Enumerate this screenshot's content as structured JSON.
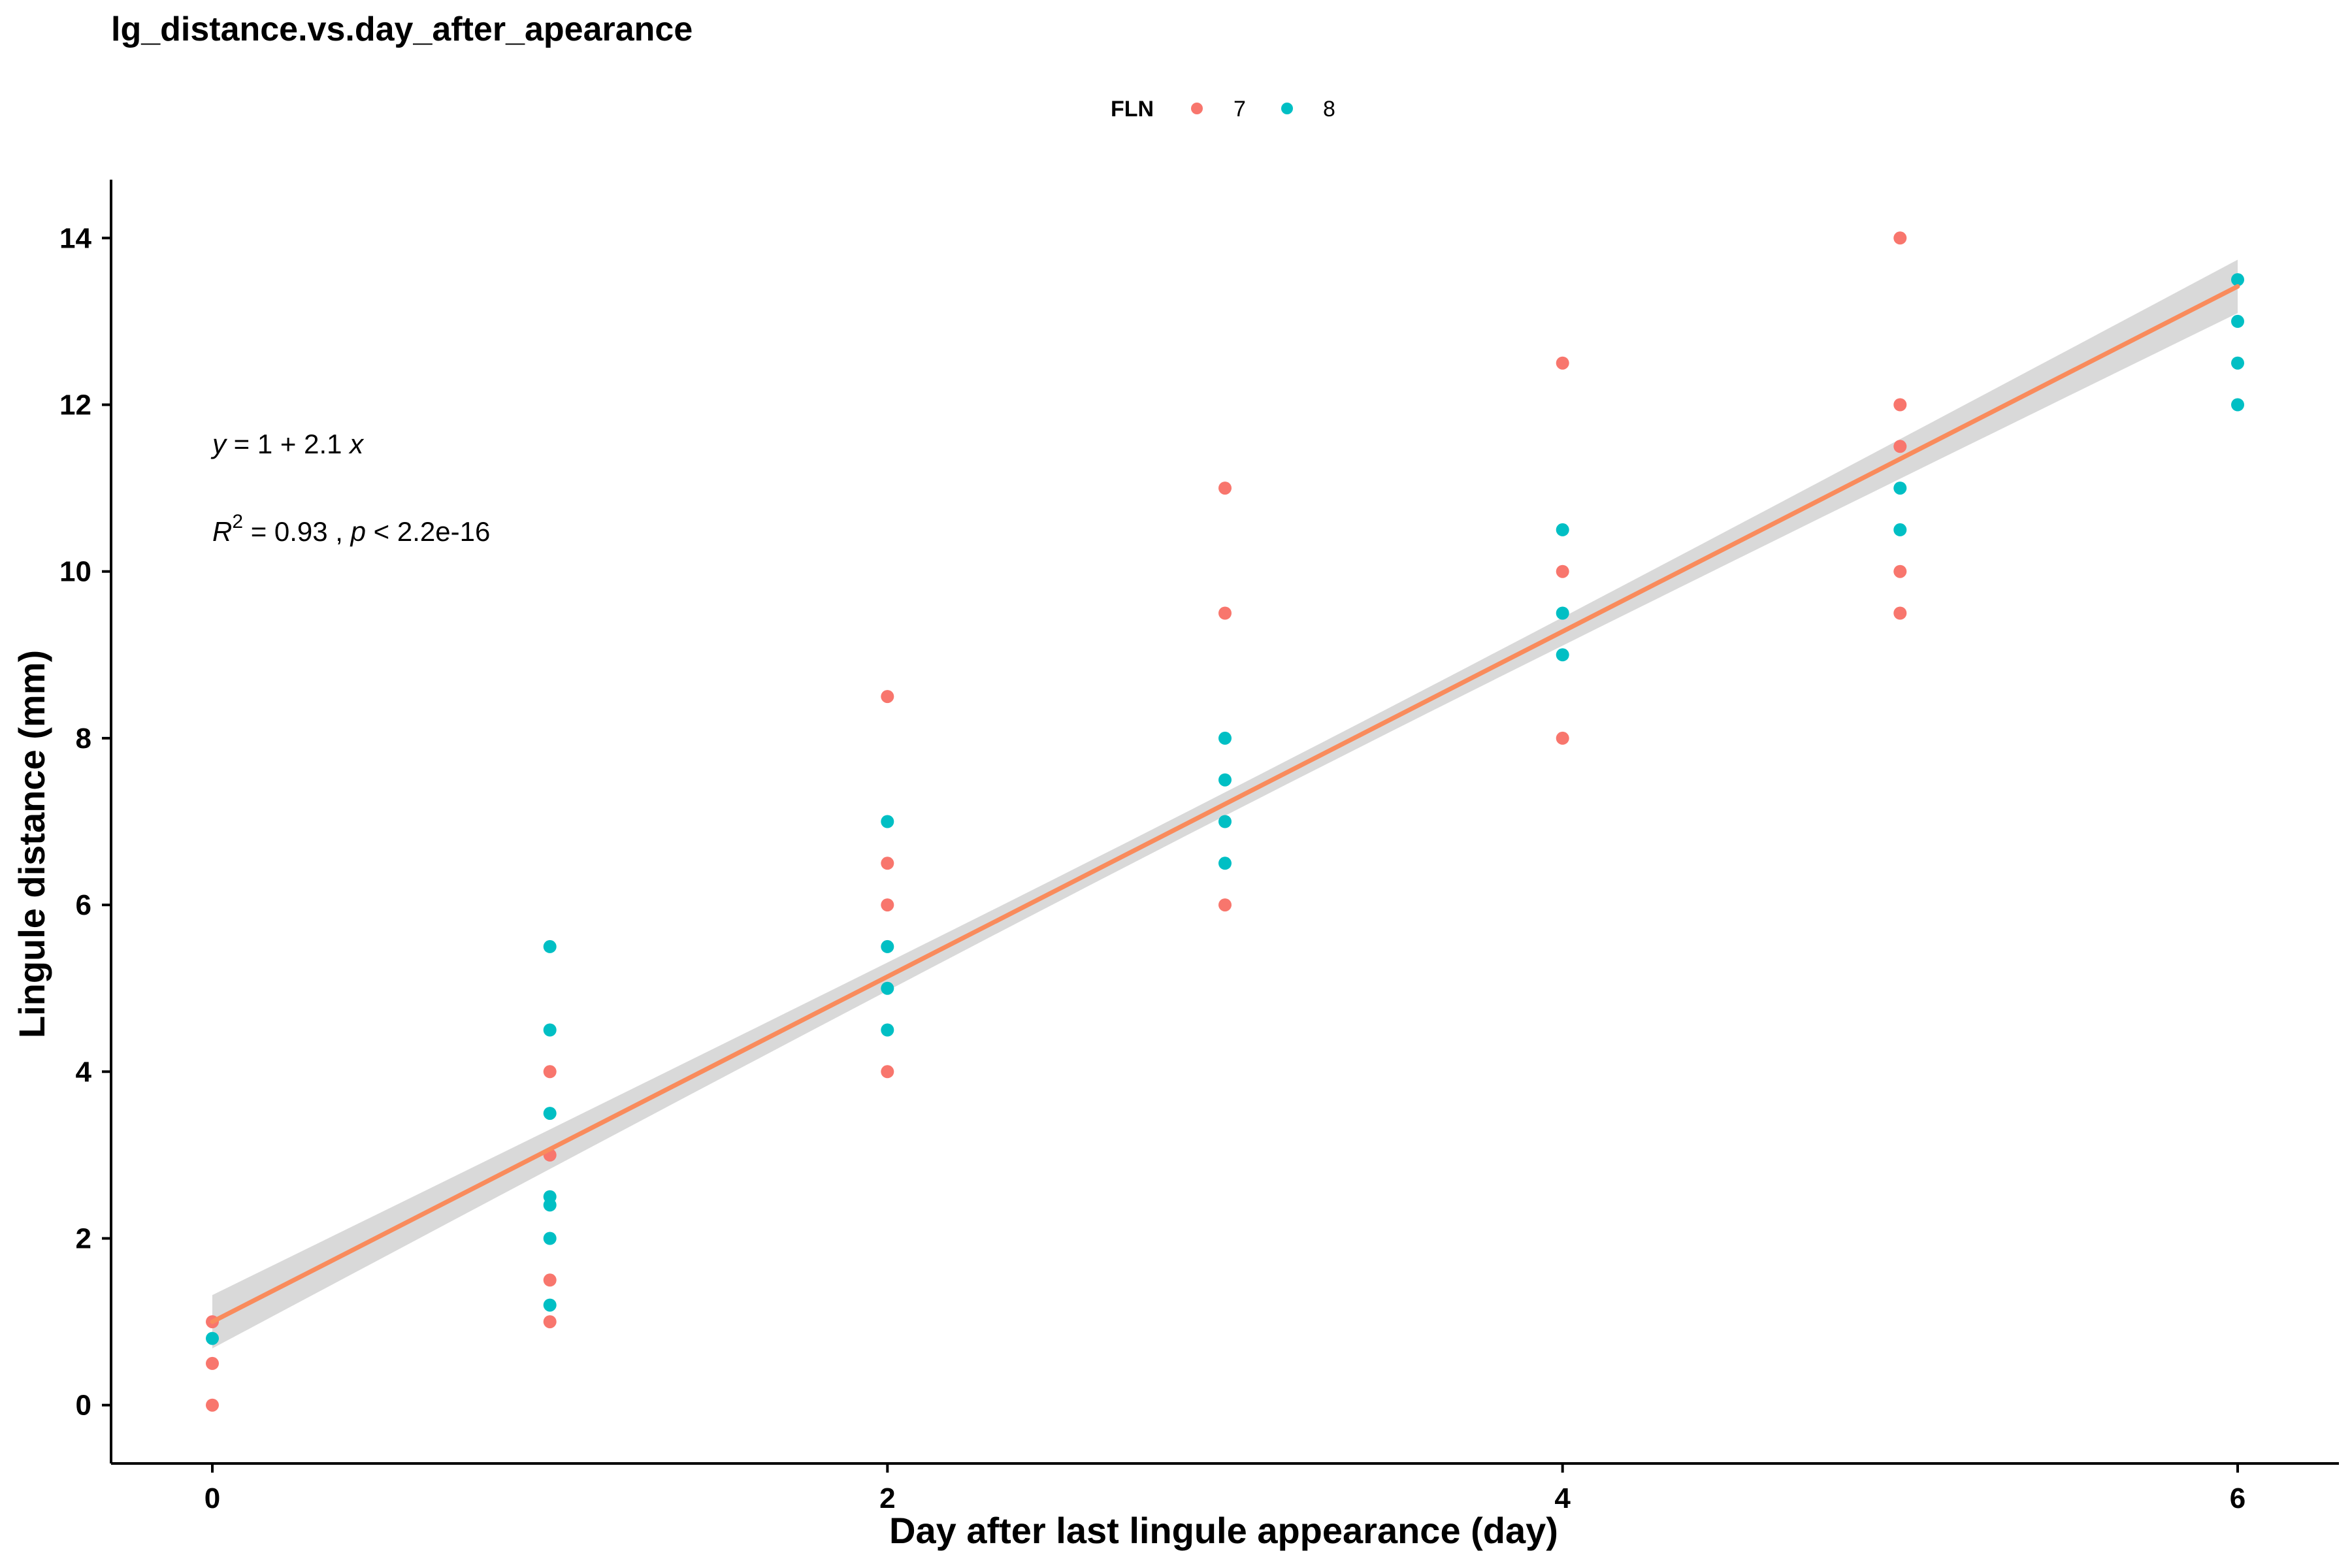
{
  "chart_data": {
    "type": "scatter",
    "title": "lg_distance.vs.day_after_apearance",
    "xlabel": "Day after last lingule appearance (day)",
    "ylabel": "Lingule distance (mm)",
    "xlim": [
      -0.3,
      6.3
    ],
    "ylim": [
      -0.7,
      14.7
    ],
    "x_ticks": [
      0,
      2,
      4,
      6
    ],
    "y_ticks": [
      0,
      2,
      4,
      6,
      8,
      10,
      12,
      14
    ],
    "grid": false,
    "legend": {
      "title": "FLN",
      "placement": "top",
      "entries": [
        "7",
        "8"
      ]
    },
    "colors": {
      "7": "#F8766D",
      "8": "#00BFC4",
      "fit_line": "#F98B5C",
      "ribbon": "#D9D9D9"
    },
    "series": [
      {
        "name": "7",
        "points": [
          [
            0,
            0
          ],
          [
            0,
            0.5
          ],
          [
            0,
            1
          ],
          [
            1,
            1
          ],
          [
            1,
            1.5
          ],
          [
            1,
            3
          ],
          [
            1,
            4
          ],
          [
            2,
            4
          ],
          [
            2,
            6
          ],
          [
            2,
            6.5
          ],
          [
            2,
            8.5
          ],
          [
            3,
            6
          ],
          [
            3,
            9.5
          ],
          [
            3,
            11
          ],
          [
            4,
            8
          ],
          [
            4,
            10
          ],
          [
            4,
            12.5
          ],
          [
            5,
            9.5
          ],
          [
            5,
            10
          ],
          [
            5,
            11.5
          ],
          [
            5,
            12
          ],
          [
            5,
            14
          ]
        ]
      },
      {
        "name": "8",
        "points": [
          [
            0,
            0.8
          ],
          [
            1,
            1.2
          ],
          [
            1,
            2
          ],
          [
            1,
            2.4
          ],
          [
            1,
            2.5
          ],
          [
            1,
            3.5
          ],
          [
            1,
            4.5
          ],
          [
            1,
            5.5
          ],
          [
            2,
            4.5
          ],
          [
            2,
            5
          ],
          [
            2,
            5.5
          ],
          [
            2,
            7
          ],
          [
            3,
            6.5
          ],
          [
            3,
            7
          ],
          [
            3,
            7.5
          ],
          [
            3,
            8
          ],
          [
            4,
            9
          ],
          [
            4,
            9.5
          ],
          [
            4,
            10.5
          ],
          [
            5,
            10.5
          ],
          [
            5,
            11
          ],
          [
            6,
            12
          ],
          [
            6,
            12.5
          ],
          [
            6,
            13
          ],
          [
            6,
            13.5
          ]
        ]
      }
    ],
    "fit": {
      "intercept": 1.0,
      "slope": 2.07,
      "x_range": [
        0,
        6
      ],
      "ci_halfwidth_at_mean": 0.14,
      "ci_halfwidth_at_ends": 0.32
    },
    "annotations": {
      "equation": {
        "y_var": "y",
        "text": " = 1 + 2.1 ",
        "x_var": "x"
      },
      "stats": {
        "r_letter": "R",
        "r_sup": "2",
        "r_text": " = 0.93 , ",
        "p_letter": "p",
        "p_text": " < 2.2e-16"
      }
    }
  }
}
